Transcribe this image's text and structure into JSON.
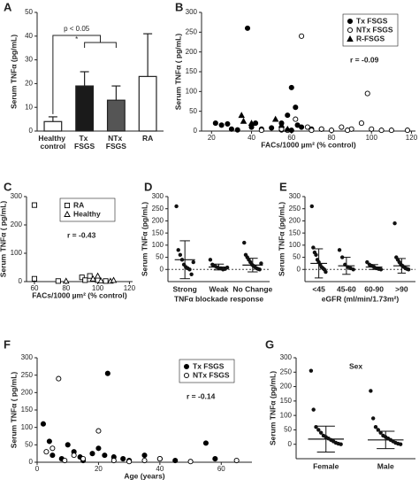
{
  "chart_data": [
    {
      "type": "bar",
      "panel": "A",
      "ylabel": "Serum TNFα (pg/mL)",
      "categories": [
        "Healthy control",
        "Tx FSGS",
        "NTx FSGS",
        "RA"
      ],
      "values": [
        4,
        19,
        13,
        23
      ],
      "errors": [
        2,
        6,
        6,
        18
      ],
      "colors": [
        "#ffffff",
        "#1a1a1a",
        "#555555",
        "#ffffff"
      ],
      "ylim": [
        0,
        50
      ],
      "yticks": [
        0,
        10,
        20,
        30,
        40,
        50
      ],
      "annotations": [
        "p < 0.05",
        "*"
      ]
    },
    {
      "type": "scatter",
      "panel": "B",
      "ylabel": "Serum TNFα ( pg/mL)",
      "xlabel": "FACs/1000 µm² (% control)",
      "xlim": [
        15,
        122
      ],
      "xticks": [
        20,
        40,
        60,
        80,
        100,
        120
      ],
      "ylim": [
        0,
        300
      ],
      "yticks": [
        0,
        50,
        100,
        150,
        200,
        250,
        300
      ],
      "legend": "upper right",
      "annotation": "r = -0.09",
      "series": [
        {
          "name": "Tx FSGS",
          "color": "#000000",
          "marker": "circle",
          "filled": true,
          "x": [
            22,
            25,
            28,
            30,
            33,
            38,
            40,
            42,
            45,
            50,
            55,
            58,
            60,
            62,
            63,
            65,
            70,
            75,
            60,
            55
          ],
          "values": [
            20,
            15,
            18,
            5,
            3,
            260,
            10,
            20,
            5,
            8,
            20,
            40,
            110,
            60,
            15,
            10,
            5,
            5,
            2,
            3
          ]
        },
        {
          "name": "NTx FSGS",
          "color": "#000000",
          "marker": "circle",
          "filled": false,
          "x": [
            45,
            55,
            58,
            62,
            65,
            68,
            70,
            75,
            80,
            85,
            90,
            95,
            98,
            100,
            105,
            110,
            118,
            88
          ],
          "values": [
            2,
            5,
            2,
            30,
            240,
            10,
            2,
            5,
            2,
            10,
            5,
            20,
            95,
            5,
            2,
            2,
            2,
            2
          ]
        },
        {
          "name": "R-FSGS",
          "color": "#000000",
          "marker": "triangle",
          "filled": true,
          "x": [
            35,
            36,
            40,
            52,
            55,
            58
          ],
          "values": [
            40,
            25,
            20,
            30,
            15,
            5
          ]
        }
      ]
    },
    {
      "type": "scatter",
      "panel": "C",
      "ylabel": "Serum TNFα ( pg/mL)",
      "xlabel": "FACs/1000 µm² (% control)",
      "xlim": [
        55,
        122
      ],
      "xticks": [
        60,
        80,
        100,
        120
      ],
      "ylim": [
        0,
        300
      ],
      "yticks": [
        0,
        100,
        200,
        300
      ],
      "legend": "upper right",
      "annotation": "r = -0.43",
      "series": [
        {
          "name": "RA",
          "color": "#000000",
          "marker": "square",
          "filled": false,
          "x": [
            60,
            60,
            90,
            92,
            95,
            100,
            75,
            105
          ],
          "values": [
            270,
            10,
            15,
            5,
            20,
            5,
            2,
            2
          ]
        },
        {
          "name": "Healthy",
          "color": "#000000",
          "marker": "triangle",
          "filled": false,
          "x": [
            80,
            97,
            100,
            102,
            108,
            110
          ],
          "values": [
            2,
            10,
            20,
            3,
            2,
            5
          ]
        }
      ]
    },
    {
      "type": "dotplot",
      "panel": "D",
      "ylabel": "Serum TNFα (pg/mL)",
      "xlabel": "TNFα blockade response",
      "categories": [
        "Strong",
        "Weak",
        "No Change"
      ],
      "values": [
        [
          260,
          80,
          60,
          40,
          20,
          10,
          5,
          0,
          -20,
          30
        ],
        [
          40,
          20,
          15,
          10,
          5,
          5,
          0,
          2,
          8
        ],
        [
          110,
          60,
          50,
          40,
          30,
          20,
          15,
          10,
          5,
          2,
          0,
          25
        ]
      ],
      "mean": [
        40,
        10,
        18
      ],
      "sd": [
        78,
        12,
        28
      ],
      "hline": 0,
      "ylim": [
        -50,
        300
      ],
      "yticks": [
        0,
        50,
        100,
        150,
        200,
        250,
        300
      ]
    },
    {
      "type": "dotplot",
      "panel": "E",
      "ylabel": "Serum TNFα (pg/mL)",
      "xlabel": "eGFR (ml/min/1.73m²)",
      "categories": [
        "<45",
        "45-60",
        "60-90",
        ">90"
      ],
      "values": [
        [
          260,
          90,
          70,
          60,
          40,
          30,
          20,
          10,
          5,
          0,
          -10
        ],
        [
          80,
          50,
          20,
          10,
          5,
          0
        ],
        [
          30,
          20,
          15,
          10,
          5,
          2,
          0
        ],
        [
          190,
          50,
          40,
          30,
          20,
          15,
          10,
          5,
          2,
          0
        ]
      ],
      "mean": [
        25,
        15,
        10,
        15
      ],
      "sd": [
        60,
        35,
        10,
        30
      ],
      "hline": 0,
      "ylim": [
        -50,
        300
      ],
      "yticks": [
        0,
        50,
        100,
        150,
        200,
        250,
        300
      ]
    },
    {
      "type": "scatter",
      "panel": "F",
      "ylabel": "Serum TNFα ( pg/mL)",
      "xlabel": "Age (years)",
      "xlim": [
        0,
        70
      ],
      "xticks": [
        0,
        20,
        40,
        60
      ],
      "ylim": [
        0,
        300
      ],
      "yticks": [
        0,
        50,
        100,
        150,
        200,
        250,
        300
      ],
      "legend": "upper right",
      "annotation": "r = -0.14",
      "series": [
        {
          "name": "Tx FSGS",
          "color": "#000000",
          "marker": "circle",
          "filled": true,
          "x": [
            2,
            4,
            5,
            8,
            10,
            12,
            14,
            15,
            18,
            20,
            22,
            23,
            25,
            28,
            30,
            35,
            40,
            45,
            55,
            58
          ],
          "values": [
            110,
            60,
            20,
            10,
            50,
            30,
            15,
            5,
            25,
            40,
            20,
            255,
            15,
            10,
            5,
            20,
            10,
            5,
            55,
            10
          ]
        },
        {
          "name": "NTx FSGS",
          "color": "#000000",
          "marker": "circle",
          "filled": false,
          "x": [
            3,
            5,
            7,
            9,
            12,
            15,
            20,
            25,
            30,
            35,
            40,
            50,
            65
          ],
          "values": [
            30,
            40,
            240,
            5,
            20,
            10,
            90,
            5,
            2,
            5,
            10,
            2,
            5
          ]
        }
      ]
    },
    {
      "type": "dotplot",
      "panel": "G",
      "ylabel": "Serum TNFα (pg/mL)",
      "xlabel": "Sex",
      "categories": [
        "Female",
        "Male"
      ],
      "values": [
        [
          255,
          120,
          60,
          50,
          40,
          30,
          25,
          20,
          15,
          10,
          5,
          2,
          0
        ],
        [
          185,
          90,
          60,
          50,
          40,
          30,
          25,
          20,
          15,
          10,
          5,
          2,
          0
        ]
      ],
      "mean": [
        18,
        15
      ],
      "sd": [
        45,
        30
      ],
      "ylim": [
        -50,
        300
      ],
      "yticks": [
        0,
        50,
        100,
        150,
        200,
        250,
        300
      ]
    }
  ]
}
